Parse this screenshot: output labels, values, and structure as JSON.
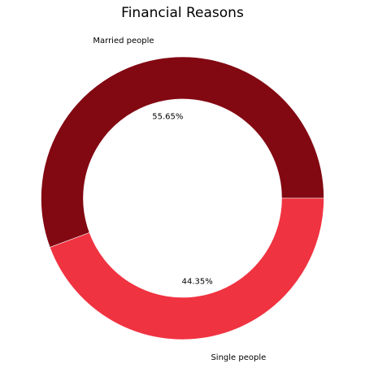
{
  "chart_data": {
    "type": "pie",
    "variant": "donut",
    "title": "Financial Reasons",
    "start_angle_deg": 0,
    "direction": "counterclockwise",
    "slices": [
      {
        "label": "Married people",
        "value": 55.65,
        "value_label": "55.65%",
        "color": "#820812"
      },
      {
        "label": "Single people",
        "value": 44.35,
        "value_label": "44.35%",
        "color": "#f03341"
      }
    ]
  }
}
